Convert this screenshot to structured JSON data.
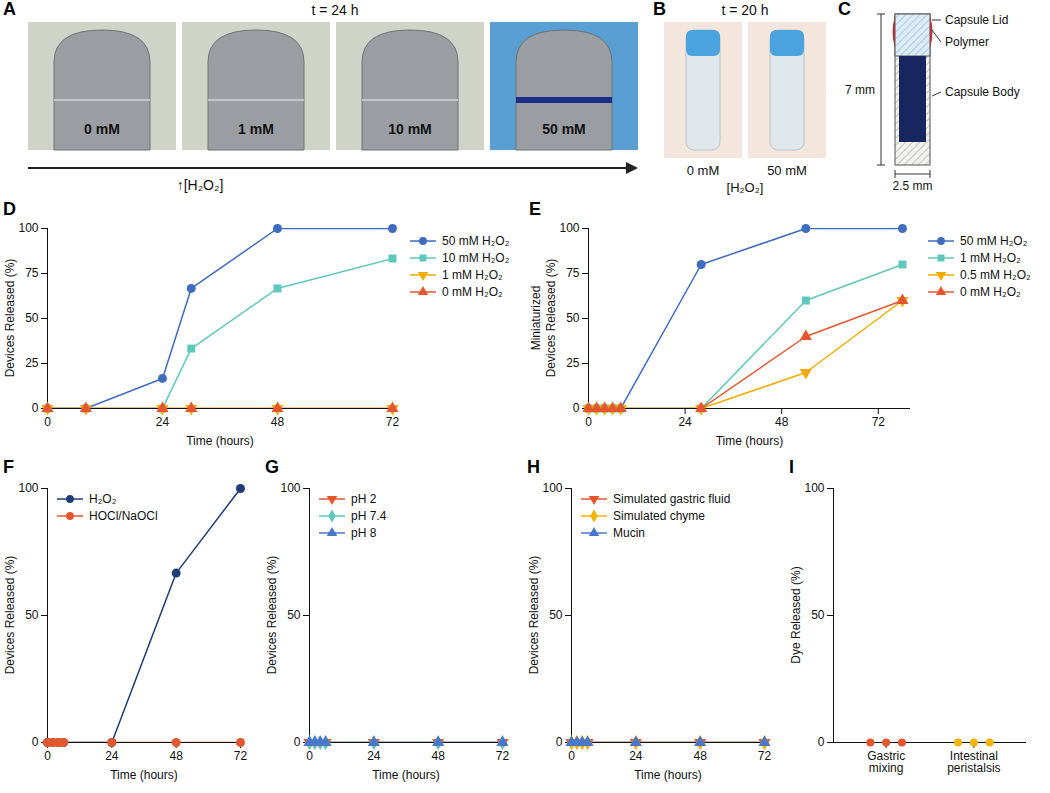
{
  "photos": [
    {
      "panel": "A",
      "title": "t = 24 h",
      "labels": [
        "0 mM",
        "1 mM",
        "10 mM",
        "50 mM"
      ],
      "axis_label": "↑[H₂O₂]"
    },
    {
      "panel": "B",
      "title": "t = 20 h",
      "labels": [
        "0 mM",
        "50 mM"
      ],
      "axis_label": "[H₂O₂]"
    }
  ],
  "diagram": {
    "panel": "C",
    "labels": [
      "Capsule Lid",
      "Polymer",
      "Capsule Body"
    ],
    "height_label": "7 mm",
    "width_label": "2.5 mm"
  },
  "chart_data": [
    {
      "panel": "D",
      "type": "line",
      "x_label": "Time (hours)",
      "y_label": "Devices Released (%)",
      "xlim": [
        0,
        72
      ],
      "xticks": [
        0,
        24,
        48,
        72
      ],
      "ylim": [
        0,
        100
      ],
      "yticks": [
        0,
        25,
        50,
        75,
        100
      ],
      "legend": "right",
      "series": [
        {
          "name": "50 mM H₂O₂",
          "color": "#3d6cc0",
          "marker": "circle",
          "x": [
            0,
            8,
            24,
            30,
            48,
            72
          ],
          "values": [
            0,
            0,
            16.7,
            66.7,
            100,
            100
          ]
        },
        {
          "name": "10 mM H₂O₂",
          "color": "#5ec8bc",
          "marker": "square",
          "x": [
            0,
            8,
            24,
            30,
            48,
            72
          ],
          "values": [
            0,
            0,
            0,
            33.3,
            66.7,
            83.3
          ]
        },
        {
          "name": "1 mM H₂O₂",
          "color": "#f2ac00",
          "marker": "triangle-down",
          "x": [
            0,
            8,
            24,
            30,
            48,
            72
          ],
          "values": [
            0,
            0,
            0,
            0,
            0,
            0
          ]
        },
        {
          "name": "0 mM H₂O₂",
          "color": "#e4572e",
          "marker": "triangle",
          "x": [
            0,
            8,
            24,
            30,
            48,
            72
          ],
          "values": [
            0,
            0,
            0,
            0,
            0,
            0
          ]
        }
      ]
    },
    {
      "panel": "E",
      "type": "line",
      "x_label": "Time (hours)",
      "y_label": "Miniaturized Devices Released (%)",
      "xlim": [
        0,
        80
      ],
      "xticks": [
        0,
        24,
        48,
        72
      ],
      "ylim": [
        0,
        100
      ],
      "yticks": [
        0,
        25,
        50,
        75,
        100
      ],
      "legend": "right",
      "series": [
        {
          "name": "50 mM H₂O₂",
          "color": "#3d6cc0",
          "marker": "circle",
          "x": [
            0,
            2,
            4,
            6,
            8,
            28,
            54,
            78
          ],
          "values": [
            0,
            0,
            0,
            0,
            0,
            80,
            100,
            100
          ]
        },
        {
          "name": "1 mM H₂O₂",
          "color": "#5ec8bc",
          "marker": "square",
          "x": [
            0,
            2,
            4,
            6,
            8,
            28,
            54,
            78
          ],
          "values": [
            0,
            0,
            0,
            0,
            0,
            0,
            60,
            80
          ]
        },
        {
          "name": "0.5 mM H₂O₂",
          "color": "#f2ac00",
          "marker": "triangle-down",
          "x": [
            0,
            2,
            4,
            6,
            8,
            28,
            54,
            78
          ],
          "values": [
            0,
            0,
            0,
            0,
            0,
            0,
            20,
            60
          ]
        },
        {
          "name": "0 mM H₂O₂",
          "color": "#e4572e",
          "marker": "triangle",
          "x": [
            0,
            2,
            4,
            6,
            8,
            28,
            54,
            78
          ],
          "values": [
            0,
            0,
            0,
            0,
            0,
            0,
            40,
            60
          ]
        }
      ]
    },
    {
      "panel": "F",
      "type": "line",
      "x_label": "Time (hours)",
      "y_label": "Devices Released (%)",
      "xlim": [
        0,
        72
      ],
      "xticks": [
        0,
        24,
        48,
        72
      ],
      "ylim": [
        0,
        100
      ],
      "yticks": [
        0,
        50,
        100
      ],
      "legend": "top-left",
      "series": [
        {
          "name": "H₂O₂",
          "color": "#1f3d7a",
          "marker": "circle",
          "x": [
            0,
            2,
            4,
            6,
            24,
            48,
            72
          ],
          "values": [
            0,
            0,
            0,
            0,
            0,
            66.7,
            100
          ]
        },
        {
          "name": "HOCl/NaOCl",
          "color": "#e4572e",
          "marker": "circle",
          "x": [
            0,
            2,
            4,
            6,
            24,
            48,
            72
          ],
          "values": [
            0,
            0,
            0,
            0,
            0,
            0,
            0
          ]
        }
      ]
    },
    {
      "panel": "G",
      "type": "line",
      "x_label": "Time (hours)",
      "y_label": "Devices Released (%)",
      "xlim": [
        0,
        72
      ],
      "xticks": [
        0,
        24,
        48,
        72
      ],
      "ylim": [
        0,
        100
      ],
      "yticks": [
        0,
        50,
        100
      ],
      "legend": "top-left",
      "series": [
        {
          "name": "pH 2",
          "color": "#e4572e",
          "marker": "triangle-down",
          "x": [
            0,
            2,
            4,
            6,
            24,
            48,
            72
          ],
          "values": [
            0,
            0,
            0,
            0,
            0,
            0,
            0
          ]
        },
        {
          "name": "pH 7.4",
          "color": "#5ec8bc",
          "marker": "diamond",
          "x": [
            0,
            2,
            4,
            6,
            24,
            48,
            72
          ],
          "values": [
            0,
            0,
            0,
            0,
            0,
            0,
            0
          ]
        },
        {
          "name": "pH 8",
          "color": "#4a78c8",
          "marker": "triangle",
          "x": [
            0,
            2,
            4,
            6,
            24,
            48,
            72
          ],
          "values": [
            0,
            0,
            0,
            0,
            0,
            0,
            0
          ]
        }
      ]
    },
    {
      "panel": "H",
      "type": "line",
      "x_label": "Time (hours)",
      "y_label": "Devices Released (%)",
      "xlim": [
        0,
        72
      ],
      "xticks": [
        0,
        24,
        48,
        72
      ],
      "ylim": [
        0,
        100
      ],
      "yticks": [
        0,
        50,
        100
      ],
      "legend": "top-left",
      "series": [
        {
          "name": "Simulated gastric fluid",
          "color": "#e4572e",
          "marker": "triangle-down",
          "x": [
            0,
            2,
            4,
            6,
            24,
            48,
            72
          ],
          "values": [
            0,
            0,
            0,
            0,
            0,
            0,
            0
          ]
        },
        {
          "name": "Simulated chyme",
          "color": "#f2b400",
          "marker": "diamond",
          "x": [
            0,
            2,
            4,
            6,
            24,
            48,
            72
          ],
          "values": [
            0,
            0,
            0,
            0,
            0,
            0,
            0
          ]
        },
        {
          "name": "Mucin",
          "color": "#4a78c8",
          "marker": "triangle",
          "x": [
            0,
            2,
            4,
            6,
            24,
            48,
            72
          ],
          "values": [
            0,
            0,
            0,
            0,
            0,
            0,
            0
          ]
        }
      ]
    },
    {
      "panel": "I",
      "type": "scatter",
      "y_label": "Dye Released (%)",
      "categories": [
        "Gastric mixing",
        "Intestinal peristalsis"
      ],
      "colors": [
        "#e4572e",
        "#f2b400"
      ],
      "marker": "circle",
      "values": [
        [
          0,
          0,
          0
        ],
        [
          0,
          0,
          0
        ]
      ],
      "ylim": [
        0,
        100
      ],
      "yticks": [
        0,
        50,
        100
      ]
    }
  ]
}
